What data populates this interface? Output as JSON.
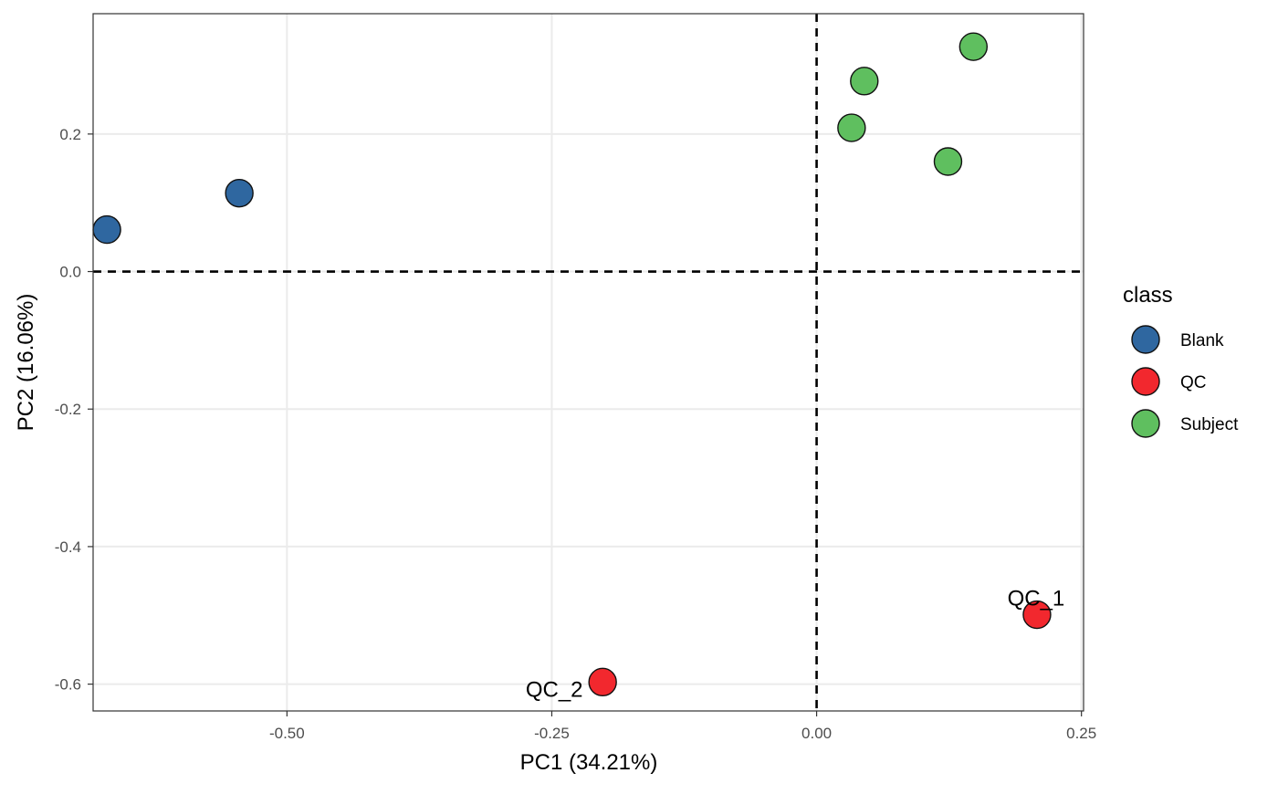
{
  "chart_data": {
    "type": "scatter",
    "xlabel": "PC1 (34.21%)",
    "ylabel": "PC2 (16.06%)",
    "xlim": [
      -0.683,
      0.252
    ],
    "ylim": [
      -0.639,
      0.375
    ],
    "x_ticks": [
      -0.5,
      -0.25,
      0.0,
      0.25
    ],
    "x_tick_labels": [
      "-0.50",
      "-0.25",
      "0.00",
      "0.25"
    ],
    "y_ticks": [
      -0.6,
      -0.4,
      -0.2,
      0.0,
      0.2
    ],
    "y_tick_labels": [
      "-0.6",
      "-0.4",
      "-0.2",
      "0.0",
      "0.2"
    ],
    "grid": true,
    "reference_lines": {
      "x": 0.0,
      "y": 0.0,
      "style": "dashed"
    },
    "legend": {
      "title": "class",
      "placement": "right",
      "entries": [
        {
          "name": "Blank",
          "color": "#2f67a0"
        },
        {
          "name": "QC",
          "color": "#f2282e"
        },
        {
          "name": "Subject",
          "color": "#5fbf5f"
        }
      ]
    },
    "series": [
      {
        "name": "Blank",
        "color": "#2f67a0",
        "points": [
          {
            "x": -0.67,
            "y": 0.061
          },
          {
            "x": -0.545,
            "y": 0.114
          }
        ]
      },
      {
        "name": "QC",
        "color": "#f2282e",
        "points": [
          {
            "x": -0.202,
            "y": -0.597,
            "label": "QC_2"
          },
          {
            "x": 0.208,
            "y": -0.499,
            "label": "QC_1"
          }
        ]
      },
      {
        "name": "Subject",
        "color": "#5fbf5f",
        "points": [
          {
            "x": 0.033,
            "y": 0.209
          },
          {
            "x": 0.045,
            "y": 0.277
          },
          {
            "x": 0.124,
            "y": 0.16
          },
          {
            "x": 0.148,
            "y": 0.327
          }
        ]
      }
    ]
  }
}
